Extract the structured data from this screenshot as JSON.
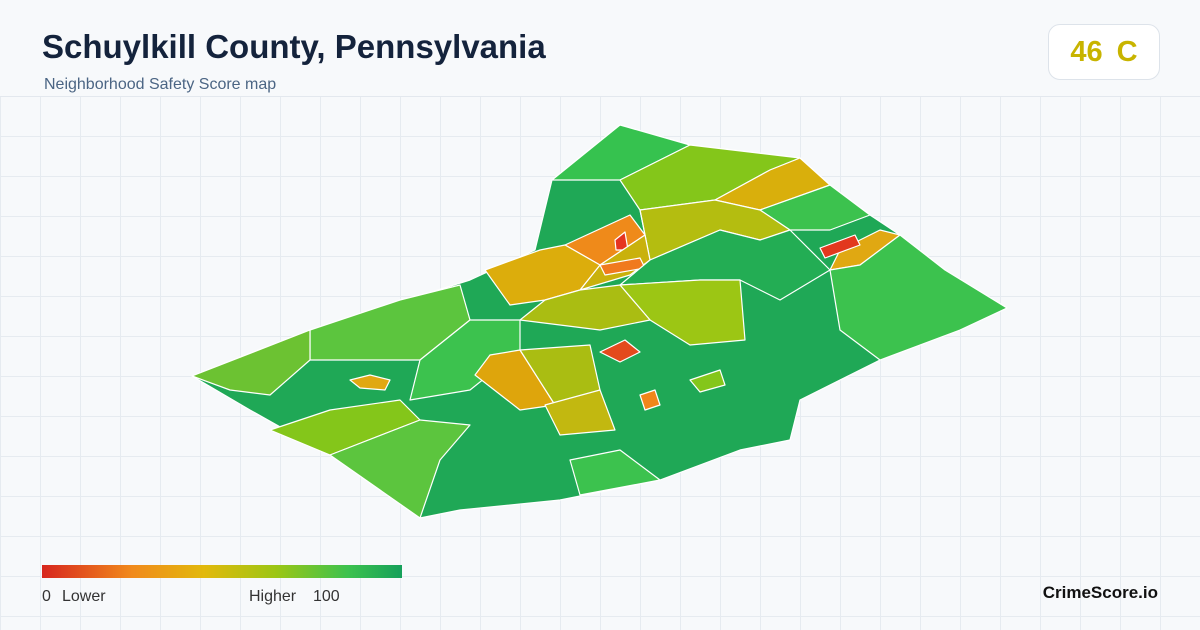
{
  "header": {
    "title": "Schuylkill County, Pennsylvania",
    "subtitle": "Neighborhood Safety Score map"
  },
  "score": {
    "value": "46",
    "grade": "C"
  },
  "legend": {
    "min": "0",
    "min_label": "Lower",
    "max_label": "Higher",
    "max": "100"
  },
  "brand": "CrimeScore.io"
}
